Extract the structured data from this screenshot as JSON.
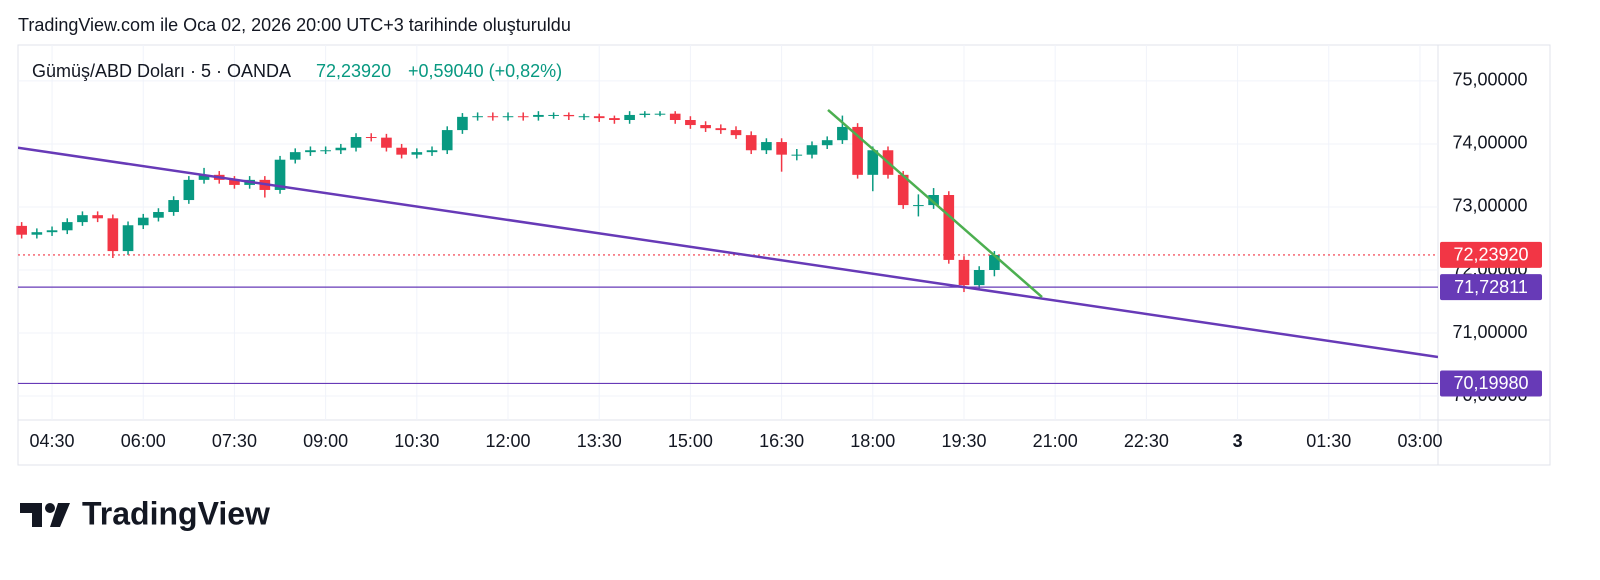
{
  "caption": "TradingView.com ile Oca 02, 2026 20:00 UTC+3 tarihinde oluşturuldu",
  "brand": "TradingView",
  "chart_data": {
    "type": "candlestick",
    "symbol": "Gümüş/ABD Doları · 5 · OANDA",
    "last": "72,23920",
    "change": "+0,59040 (+0,82%)",
    "up_color": "#089981",
    "down_color": "#f23645",
    "xlim": [
      236.4,
      1637.8
    ],
    "ylim": [
      69.62,
      75.57
    ],
    "xticks": [
      {
        "value": 270,
        "label": "04:30"
      },
      {
        "value": 360,
        "label": "06:00"
      },
      {
        "value": 450,
        "label": "07:30"
      },
      {
        "value": 540,
        "label": "09:00"
      },
      {
        "value": 630,
        "label": "10:30"
      },
      {
        "value": 720,
        "label": "12:00"
      },
      {
        "value": 810,
        "label": "13:30"
      },
      {
        "value": 900,
        "label": "15:00"
      },
      {
        "value": 990,
        "label": "16:30"
      },
      {
        "value": 1080,
        "label": "18:00"
      },
      {
        "value": 1170,
        "label": "19:30"
      },
      {
        "value": 1260,
        "label": "21:00"
      },
      {
        "value": 1350,
        "label": "22:30"
      },
      {
        "value": 1440,
        "label": "3"
      },
      {
        "value": 1530,
        "label": "01:30"
      },
      {
        "value": 1620,
        "label": "03:00"
      }
    ],
    "yticks": [
      {
        "value": 75,
        "label": "75,00000"
      },
      {
        "value": 74,
        "label": "74,00000"
      },
      {
        "value": 73,
        "label": "73,00000"
      },
      {
        "value": 72,
        "label": "72,00000"
      },
      {
        "value": 71,
        "label": "71,00000"
      },
      {
        "value": 70,
        "label": "70,00000"
      }
    ],
    "grid": true,
    "x": [
      240,
      255,
      270,
      285,
      300,
      315,
      330,
      345,
      360,
      375,
      390,
      405,
      420,
      435,
      450,
      465,
      480,
      495,
      510,
      525,
      540,
      555,
      570,
      585,
      600,
      615,
      630,
      645,
      660,
      675,
      690,
      705,
      720,
      735,
      750,
      765,
      780,
      795,
      810,
      825,
      840,
      855,
      870,
      885,
      900,
      915,
      930,
      945,
      960,
      975,
      990,
      1005,
      1020,
      1035,
      1050,
      1065,
      1080,
      1095,
      1110,
      1125,
      1140,
      1155,
      1170,
      1185,
      1200
    ],
    "open": [
      72.7,
      72.56,
      72.6,
      72.63,
      72.76,
      72.87,
      72.82,
      72.3,
      72.71,
      72.83,
      72.92,
      73.11,
      73.43,
      73.51,
      73.43,
      73.35,
      73.43,
      73.27,
      73.75,
      73.87,
      73.9,
      73.9,
      73.94,
      74.11,
      74.1,
      73.94,
      73.83,
      73.87,
      73.9,
      74.22,
      74.43,
      74.44,
      74.43,
      74.44,
      74.43,
      74.46,
      74.46,
      74.44,
      74.44,
      74.41,
      74.38,
      74.46,
      74.48,
      74.48,
      74.38,
      74.3,
      74.25,
      74.22,
      74.14,
      73.9,
      74.03,
      73.83,
      73.83,
      73.98,
      74.06,
      74.27,
      73.51,
      73.9,
      73.51,
      73.03,
      73.03,
      73.19,
      72.16,
      71.76,
      72.0
    ],
    "high": [
      72.76,
      72.66,
      72.69,
      72.82,
      72.93,
      72.93,
      72.88,
      72.77,
      72.89,
      72.98,
      73.17,
      73.49,
      73.62,
      73.57,
      73.49,
      73.49,
      73.49,
      73.81,
      73.93,
      73.96,
      73.96,
      74.0,
      74.17,
      74.17,
      74.16,
      74.0,
      73.93,
      73.96,
      74.28,
      74.49,
      74.5,
      74.5,
      74.5,
      74.5,
      74.52,
      74.5,
      74.5,
      74.48,
      74.48,
      74.45,
      74.52,
      74.52,
      74.52,
      74.52,
      74.44,
      74.36,
      74.31,
      74.28,
      74.2,
      74.09,
      74.09,
      73.92,
      74.04,
      74.12,
      74.45,
      74.33,
      73.96,
      73.96,
      73.57,
      73.2,
      73.3,
      73.25,
      72.22,
      72.06,
      72.3
    ],
    "low": [
      72.5,
      72.5,
      72.54,
      72.57,
      72.7,
      72.76,
      72.19,
      72.24,
      72.65,
      72.77,
      72.86,
      73.05,
      73.37,
      73.37,
      73.29,
      73.29,
      73.15,
      73.21,
      73.69,
      73.81,
      73.84,
      73.84,
      73.88,
      74.04,
      73.88,
      73.77,
      73.77,
      73.81,
      73.84,
      74.16,
      74.37,
      74.37,
      74.37,
      74.37,
      74.37,
      74.4,
      74.38,
      74.38,
      74.35,
      74.32,
      74.32,
      74.42,
      74.44,
      74.32,
      74.24,
      74.19,
      74.16,
      74.08,
      73.84,
      73.84,
      73.56,
      73.74,
      73.77,
      73.92,
      74.0,
      73.45,
      73.25,
      73.45,
      72.97,
      72.85,
      72.97,
      72.1,
      71.65,
      71.7,
      71.9
    ],
    "close": [
      72.56,
      72.6,
      72.63,
      72.76,
      72.87,
      72.82,
      72.3,
      72.71,
      72.83,
      72.92,
      73.11,
      73.43,
      73.51,
      73.43,
      73.35,
      73.43,
      73.27,
      73.75,
      73.87,
      73.9,
      73.9,
      73.94,
      74.11,
      74.1,
      73.94,
      73.83,
      73.87,
      73.9,
      74.22,
      74.43,
      74.44,
      74.43,
      74.44,
      74.43,
      74.46,
      74.46,
      74.44,
      74.44,
      74.41,
      74.38,
      74.46,
      74.48,
      74.48,
      74.38,
      74.3,
      74.25,
      74.22,
      74.14,
      73.9,
      74.03,
      73.83,
      73.83,
      73.98,
      74.06,
      74.27,
      73.51,
      73.9,
      73.51,
      73.03,
      73.03,
      73.19,
      72.16,
      71.76,
      72.0,
      72.2392
    ],
    "trendlines": [
      {
        "color": "#673ab7",
        "points": [
          [
            236.4,
            73.94
          ],
          [
            1637.8,
            70.62
          ]
        ]
      },
      {
        "color": "#4caf50",
        "points": [
          [
            1035.8,
            74.54
          ],
          [
            1247,
            71.57
          ]
        ]
      }
    ],
    "price_lines": [
      {
        "value": 72.2392,
        "label": "72,23920",
        "color": "#f23645",
        "dotted": true
      },
      {
        "value": 71.72811,
        "label": "71,72811",
        "color": "#673ab7",
        "dotted": false
      },
      {
        "value": 70.1998,
        "label": "70,19980",
        "color": "#673ab7",
        "dotted": false
      }
    ]
  }
}
